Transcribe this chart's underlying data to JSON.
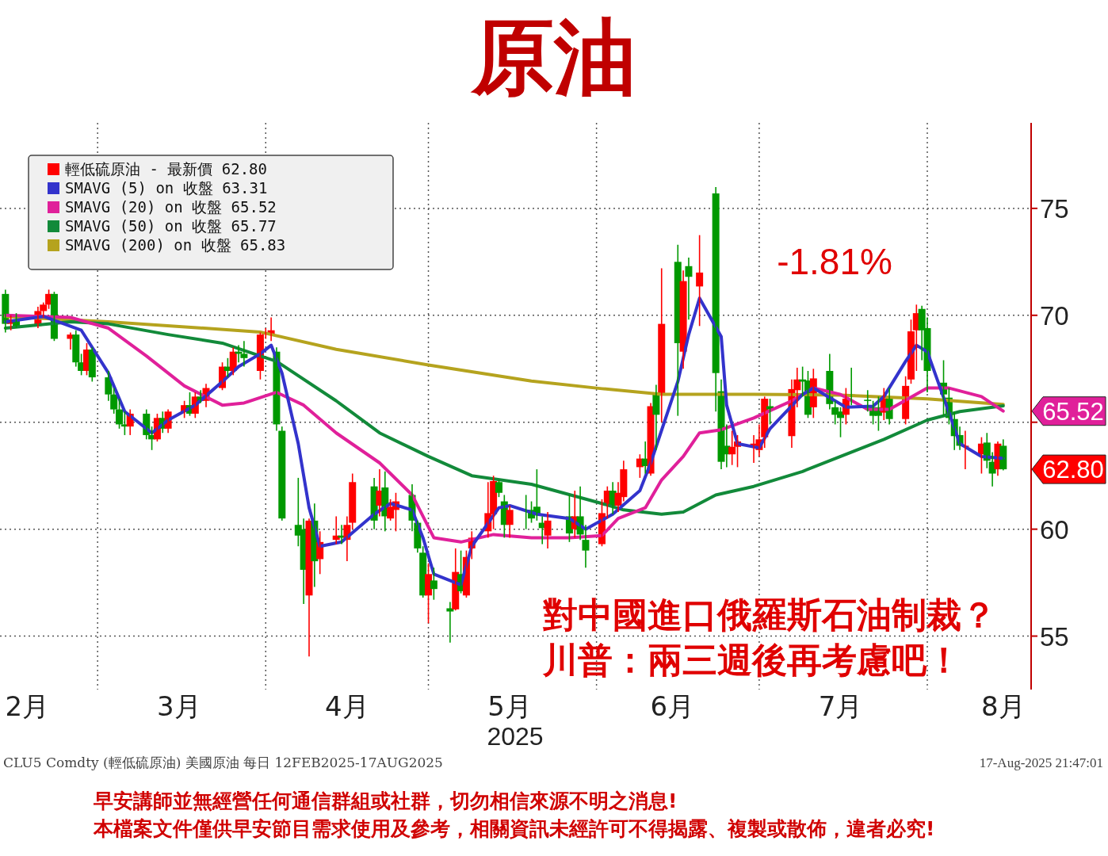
{
  "chart_data": {
    "type": "candlestick",
    "title": "原油",
    "xlabel": "2025",
    "xlim": [
      "2025-02-11",
      "2025-08-20"
    ],
    "ylim": [
      52.5,
      79
    ],
    "xticks": [
      {
        "value": "2025-02-16",
        "label": "2月"
      },
      {
        "value": "2025-03-01",
        "label": null
      },
      {
        "value": "2025-03-16",
        "label": "3月"
      },
      {
        "value": "2025-04-01",
        "label": null
      },
      {
        "value": "2025-04-16",
        "label": "4月"
      },
      {
        "value": "2025-05-01",
        "label": null
      },
      {
        "value": "2025-05-16",
        "label": "5月"
      },
      {
        "value": "2025-06-01",
        "label": null
      },
      {
        "value": "2025-06-15",
        "label": "6月"
      },
      {
        "value": "2025-07-01",
        "label": null
      },
      {
        "value": "2025-07-16",
        "label": "7月"
      },
      {
        "value": "2025-08-01",
        "label": null
      },
      {
        "value": "2025-08-15",
        "label": "8月"
      }
    ],
    "yticks": [
      55,
      60,
      {
        "value": 65,
        "label": null
      },
      70,
      75
    ],
    "grid": true,
    "legend": "top left",
    "x": [
      "2025-02-12",
      "2025-02-13",
      "2025-02-14",
      "2025-02-18",
      "2025-02-19",
      "2025-02-20",
      "2025-02-21",
      "2025-02-24",
      "2025-02-25",
      "2025-02-26",
      "2025-02-27",
      "2025-02-28",
      "2025-03-03",
      "2025-03-04",
      "2025-03-05",
      "2025-03-06",
      "2025-03-07",
      "2025-03-10",
      "2025-03-11",
      "2025-03-12",
      "2025-03-13",
      "2025-03-14",
      "2025-03-17",
      "2025-03-18",
      "2025-03-19",
      "2025-03-20",
      "2025-03-21",
      "2025-03-24",
      "2025-03-25",
      "2025-03-26",
      "2025-03-27",
      "2025-03-28",
      "2025-03-31",
      "2025-04-01",
      "2025-04-02",
      "2025-04-03",
      "2025-04-04",
      "2025-04-07",
      "2025-04-08",
      "2025-04-09",
      "2025-04-10",
      "2025-04-11",
      "2025-04-14",
      "2025-04-15",
      "2025-04-16",
      "2025-04-17",
      "2025-04-21",
      "2025-04-22",
      "2025-04-23",
      "2025-04-24",
      "2025-04-25",
      "2025-04-28",
      "2025-04-29",
      "2025-04-30",
      "2025-05-01",
      "2025-05-02",
      "2025-05-05",
      "2025-05-06",
      "2025-05-07",
      "2025-05-08",
      "2025-05-09",
      "2025-05-12",
      "2025-05-13",
      "2025-05-14",
      "2025-05-15",
      "2025-05-16",
      "2025-05-19",
      "2025-05-20",
      "2025-05-21",
      "2025-05-22",
      "2025-05-23",
      "2025-05-27",
      "2025-05-28",
      "2025-05-29",
      "2025-05-30",
      "2025-06-02",
      "2025-06-03",
      "2025-06-04",
      "2025-06-05",
      "2025-06-06",
      "2025-06-09",
      "2025-06-10",
      "2025-06-11",
      "2025-06-12",
      "2025-06-13",
      "2025-06-16",
      "2025-06-17",
      "2025-06-18",
      "2025-06-20",
      "2025-06-23",
      "2025-06-24",
      "2025-06-25",
      "2025-06-26",
      "2025-06-27",
      "2025-06-30",
      "2025-07-01",
      "2025-07-02",
      "2025-07-03",
      "2025-07-07",
      "2025-07-08",
      "2025-07-09",
      "2025-07-10",
      "2025-07-11",
      "2025-07-14",
      "2025-07-15",
      "2025-07-16",
      "2025-07-17",
      "2025-07-18",
      "2025-07-21",
      "2025-07-22",
      "2025-07-23",
      "2025-07-24",
      "2025-07-25",
      "2025-07-28",
      "2025-07-29",
      "2025-07-30",
      "2025-07-31",
      "2025-08-01",
      "2025-08-04",
      "2025-08-05",
      "2025-08-06",
      "2025-08-07",
      "2025-08-08",
      "2025-08-11",
      "2025-08-12",
      "2025-08-13",
      "2025-08-14",
      "2025-08-15"
    ],
    "series": [
      {
        "name": "輕低硫原油 - 最新價 62.80",
        "color": "#ff0000",
        "ohlc": [
          [
            71.0,
            71.2,
            69.2,
            69.6
          ],
          [
            69.6,
            70.0,
            69.3,
            69.8
          ],
          [
            69.8,
            70.1,
            69.4,
            69.5
          ],
          [
            69.5,
            70.4,
            69.4,
            70.2
          ],
          [
            70.2,
            70.6,
            69.9,
            70.5
          ],
          [
            70.5,
            71.2,
            70.3,
            71.0
          ],
          [
            71.0,
            71.1,
            68.8,
            68.9
          ],
          [
            68.9,
            69.2,
            68.4,
            69.1
          ],
          [
            69.1,
            69.3,
            67.6,
            67.8
          ],
          [
            67.8,
            68.2,
            67.2,
            67.4
          ],
          [
            67.4,
            68.7,
            67.2,
            68.4
          ],
          [
            68.4,
            68.5,
            66.9,
            67.1
          ],
          [
            67.1,
            67.4,
            66.0,
            66.3
          ],
          [
            66.3,
            66.6,
            65.4,
            65.6
          ],
          [
            65.6,
            66.1,
            64.7,
            64.9
          ],
          [
            64.9,
            65.5,
            64.4,
            64.8
          ],
          [
            64.8,
            65.6,
            64.4,
            65.4
          ],
          [
            65.4,
            65.6,
            64.2,
            64.4
          ],
          [
            64.4,
            64.8,
            63.7,
            64.2
          ],
          [
            64.2,
            65.4,
            64.1,
            65.2
          ],
          [
            65.2,
            65.5,
            64.5,
            64.7
          ],
          [
            64.7,
            65.6,
            64.5,
            65.5
          ],
          [
            65.5,
            66.0,
            65.2,
            65.8
          ],
          [
            65.8,
            66.4,
            65.3,
            65.4
          ],
          [
            65.4,
            66.4,
            65.2,
            66.2
          ],
          [
            66.2,
            66.5,
            65.9,
            66.0
          ],
          [
            66.0,
            66.8,
            65.7,
            66.6
          ],
          [
            66.6,
            67.8,
            66.5,
            67.6
          ],
          [
            67.6,
            68.0,
            67.1,
            67.4
          ],
          [
            67.4,
            68.5,
            67.2,
            68.3
          ],
          [
            68.3,
            68.6,
            67.8,
            68.2
          ],
          [
            68.2,
            68.8,
            67.6,
            68.0
          ],
          [
            67.4,
            69.2,
            67.0,
            69.1
          ],
          [
            69.1,
            69.4,
            68.9,
            69.2
          ],
          [
            69.1,
            69.9,
            68.8,
            69.3
          ],
          [
            68.3,
            68.5,
            64.6,
            64.9
          ],
          [
            64.6,
            64.8,
            60.4,
            60.5
          ],
          [
            60.2,
            62.4,
            59.2,
            59.7
          ],
          [
            60.0,
            60.5,
            56.5,
            58.1
          ],
          [
            56.9,
            60.5,
            54.05,
            60.4
          ],
          [
            60.4,
            61.2,
            57.3,
            58.5
          ],
          [
            58.6,
            59.9,
            57.9,
            59.4
          ],
          [
            59.5,
            60.6,
            59.3,
            59.7
          ],
          [
            59.7,
            60.2,
            59.3,
            59.6
          ],
          [
            59.5,
            60.6,
            58.5,
            60.2
          ],
          [
            60.3,
            62.6,
            60.0,
            62.2
          ],
          [
            62.0,
            62.4,
            60.0,
            60.4
          ],
          [
            61.1,
            62.8,
            60.6,
            61.8
          ],
          [
            61.95,
            62.7,
            59.9,
            60.6
          ],
          [
            60.5,
            61.4,
            60.4,
            61.05
          ],
          [
            60.9,
            61.7,
            59.9,
            61.3
          ],
          [
            61.6,
            62.1,
            59.9,
            60.4
          ],
          [
            60.3,
            60.4,
            58.9,
            59.1
          ],
          [
            58.9,
            59.2,
            56.8,
            56.9
          ],
          [
            56.9,
            58.4,
            55.6,
            57.9
          ],
          [
            57.6,
            58.2,
            56.7,
            57.2
          ],
          [
            56.3,
            56.6,
            54.7,
            56.15
          ],
          [
            56.25,
            59.1,
            56.2,
            58.0
          ],
          [
            57.9,
            59.0,
            57.0,
            57.1
          ],
          [
            56.9,
            59.0,
            56.8,
            58.7
          ],
          [
            59.1,
            59.9,
            58.6,
            59.6
          ],
          [
            59.9,
            62.2,
            59.6,
            60.75
          ],
          [
            60.7,
            62.5,
            60.0,
            62.25
          ],
          [
            62.2,
            62.3,
            61.5,
            61.7
          ],
          [
            61.3,
            61.6,
            59.6,
            60.2
          ],
          [
            60.2,
            61.1,
            59.6,
            60.9
          ],
          [
            60.9,
            61.6,
            60.0,
            60.85
          ],
          [
            60.9,
            61.3,
            60.3,
            60.5
          ],
          [
            61.05,
            62.8,
            60.4,
            60.7
          ],
          [
            60.3,
            60.6,
            59.3,
            60.05
          ],
          [
            59.7,
            60.8,
            59.1,
            60.4
          ],
          [
            60.6,
            61.6,
            59.4,
            59.8
          ],
          [
            60.0,
            61.8,
            59.6,
            60.6
          ],
          [
            60.6,
            62.0,
            59.5,
            59.75
          ],
          [
            59.5,
            60.2,
            58.2,
            59.0
          ],
          [
            59.3,
            61.4,
            59.2,
            60.75
          ],
          [
            61.15,
            62.0,
            60.5,
            61.8
          ],
          [
            61.8,
            62.2,
            60.7,
            61.1
          ],
          [
            61.1,
            62.2,
            60.8,
            61.7
          ],
          [
            61.5,
            63.2,
            61.3,
            62.8
          ],
          [
            62.9,
            63.5,
            62.4,
            63.3
          ],
          [
            63.3,
            64.1,
            62.6,
            62.95
          ],
          [
            62.6,
            65.9,
            62.5,
            65.75
          ],
          [
            66.4,
            66.75,
            63.7,
            65.35
          ],
          [
            66.3,
            72.2,
            65.0,
            69.6
          ],
          [
            72.5,
            73.3,
            65.3,
            68.7
          ],
          [
            68.3,
            72.1,
            67.5,
            71.6
          ],
          [
            72.3,
            72.7,
            69.8,
            71.8
          ],
          [
            71.35,
            73.75,
            69.5,
            72.0
          ],
          [
            75.7,
            76.0,
            65.5,
            67.3
          ],
          [
            66.45,
            67.0,
            62.8,
            63.15
          ],
          [
            63.9,
            64.9,
            62.9,
            63.5
          ],
          [
            63.5,
            64.6,
            63.0,
            63.85
          ],
          [
            63.85,
            64.4,
            62.9,
            64.1
          ],
          [
            63.9,
            64.4,
            63.1,
            64.0
          ],
          [
            63.7,
            64.9,
            63.4,
            64.2
          ],
          [
            64.3,
            66.2,
            63.8,
            66.1
          ],
          [
            65.75,
            66.1,
            64.9,
            65.6
          ],
          [
            64.35,
            67.0,
            63.8,
            66.55
          ],
          [
            66.5,
            67.55,
            65.7,
            67.0
          ],
          [
            67.0,
            67.6,
            66.2,
            66.9
          ],
          [
            66.95,
            67.4,
            65.2,
            65.35
          ],
          [
            65.7,
            67.5,
            65.2,
            67.05
          ],
          [
            67.4,
            68.2,
            65.6,
            65.85
          ],
          [
            65.7,
            66.0,
            64.9,
            65.35
          ],
          [
            65.5,
            65.7,
            64.3,
            65.2
          ],
          [
            65.35,
            66.6,
            64.9,
            66.1
          ],
          [
            66.3,
            67.55,
            65.8,
            66.2
          ],
          [
            66.05,
            66.5,
            65.5,
            66.0
          ],
          [
            65.7,
            66.0,
            64.9,
            65.3
          ],
          [
            65.7,
            66.2,
            64.6,
            65.3
          ],
          [
            65.45,
            66.6,
            65.1,
            66.1
          ],
          [
            66.1,
            66.6,
            64.9,
            65.15
          ],
          [
            65.15,
            67.15,
            64.9,
            66.7
          ],
          [
            67.0,
            69.8,
            66.8,
            69.25
          ],
          [
            69.3,
            70.5,
            67.4,
            70.1
          ],
          [
            70.3,
            70.45,
            67.9,
            69.3
          ],
          [
            69.4,
            69.9,
            66.4,
            67.4
          ],
          [
            66.85,
            67.9,
            65.3,
            66.3
          ],
          [
            66.15,
            66.6,
            64.9,
            65.2
          ],
          [
            65.15,
            65.5,
            63.7,
            64.35
          ],
          [
            64.4,
            64.8,
            63.7,
            63.9
          ],
          [
            63.85,
            64.6,
            62.8,
            63.9
          ],
          [
            63.5,
            64.3,
            62.6,
            64.0
          ],
          [
            64.05,
            64.5,
            62.85,
            63.2
          ],
          [
            63.15,
            63.6,
            62.0,
            62.6
          ],
          [
            62.8,
            64.1,
            62.5,
            64.0
          ],
          [
            63.9,
            64.2,
            62.75,
            62.8
          ]
        ],
        "colors": [
          "#009900",
          "#ff0000",
          "#009900",
          "#ff0000",
          "#ff0000",
          "#ff0000",
          "#009900",
          "#ff0000",
          "#009900",
          "#009900",
          "#ff0000",
          "#009900",
          "#009900",
          "#009900",
          "#009900",
          "#009900",
          "#ff0000",
          "#009900",
          "#009900",
          "#ff0000",
          "#009900",
          "#ff0000",
          "#ff0000",
          "#009900",
          "#ff0000",
          "#009900",
          "#ff0000",
          "#ff0000",
          "#009900",
          "#ff0000",
          "#009900",
          "#009900",
          "#ff0000",
          "#ff0000",
          "#ff0000",
          "#009900",
          "#009900",
          "#009900",
          "#009900",
          "#ff0000",
          "#009900",
          "#ff0000",
          "#ff0000",
          "#009900",
          "#ff0000",
          "#ff0000",
          "#009900",
          "#ff0000",
          "#009900",
          "#ff0000",
          "#ff0000",
          "#009900",
          "#009900",
          "#009900",
          "#ff0000",
          "#009900",
          "#009900",
          "#ff0000",
          "#009900",
          "#ff0000",
          "#ff0000",
          "#ff0000",
          "#ff0000",
          "#009900",
          "#009900",
          "#ff0000",
          "#009900",
          "#009900",
          "#009900",
          "#009900",
          "#ff0000",
          "#009900",
          "#ff0000",
          "#009900",
          "#009900",
          "#ff0000",
          "#ff0000",
          "#009900",
          "#ff0000",
          "#ff0000",
          "#ff0000",
          "#009900",
          "#ff0000",
          "#009900",
          "#ff0000",
          "#009900",
          "#ff0000",
          "#009900",
          "#ff0000",
          "#009900",
          "#009900",
          "#009900",
          "#ff0000",
          "#ff0000",
          "#ff0000",
          "#ff0000",
          "#ff0000",
          "#009900",
          "#ff0000",
          "#ff0000",
          "#009900",
          "#009900",
          "#ff0000",
          "#009900",
          "#009900",
          "#009900",
          "#ff0000",
          "#009900",
          "#009900",
          "#009900",
          "#009900",
          "#ff0000",
          "#009900",
          "#ff0000",
          "#ff0000",
          "#ff0000",
          "#009900",
          "#009900",
          "#009900",
          "#009900",
          "#009900",
          "#009900",
          "#ff0000",
          "#ff0000",
          "#009900",
          "#009900",
          "#ff0000",
          "#009900"
        ]
      },
      {
        "name": "SMAVG (5) on 收盤 63.31",
        "type": "line",
        "color": "#3333cc",
        "x": [
          "2025-02-12",
          "2025-02-19",
          "2025-02-26",
          "2025-03-03",
          "2025-03-06",
          "2025-03-11",
          "2025-03-14",
          "2025-03-19",
          "2025-03-24",
          "2025-03-27",
          "2025-03-31",
          "2025-04-02",
          "2025-04-04",
          "2025-04-07",
          "2025-04-09",
          "2025-04-11",
          "2025-04-15",
          "2025-04-21",
          "2025-04-24",
          "2025-04-28",
          "2025-04-30",
          "2025-05-02",
          "2025-05-07",
          "2025-05-09",
          "2025-05-14",
          "2025-05-16",
          "2025-05-21",
          "2025-05-27",
          "2025-05-30",
          "2025-06-04",
          "2025-06-09",
          "2025-06-11",
          "2025-06-16",
          "2025-06-18",
          "2025-06-20",
          "2025-06-24",
          "2025-06-25",
          "2025-06-27",
          "2025-07-01",
          "2025-07-03",
          "2025-07-09",
          "2025-07-11",
          "2025-07-15",
          "2025-07-17",
          "2025-07-22",
          "2025-07-24",
          "2025-07-28",
          "2025-07-30",
          "2025-08-01",
          "2025-08-05",
          "2025-08-07",
          "2025-08-11",
          "2025-08-15"
        ],
        "values": [
          69.7,
          69.95,
          69.3,
          67.3,
          65.5,
          64.5,
          65.1,
          65.8,
          66.9,
          67.6,
          68.2,
          68.6,
          67.3,
          64.0,
          61.0,
          59.2,
          59.4,
          60.7,
          61.2,
          60.9,
          59.6,
          57.9,
          57.4,
          59.2,
          61.0,
          61.1,
          60.7,
          60.5,
          60.0,
          60.7,
          61.8,
          63.1,
          66.9,
          69.1,
          70.8,
          69.0,
          65.8,
          64.0,
          63.8,
          64.7,
          66.3,
          66.6,
          66.0,
          65.7,
          65.75,
          66.2,
          67.85,
          68.6,
          68.3,
          65.45,
          64.0,
          63.4,
          63.31
        ]
      },
      {
        "name": "SMAVG (20) on 收盤 65.52",
        "type": "line",
        "color": "#e0209a",
        "x": [
          "2025-02-12",
          "2025-02-24",
          "2025-03-03",
          "2025-03-10",
          "2025-03-17",
          "2025-03-24",
          "2025-03-28",
          "2025-04-03",
          "2025-04-08",
          "2025-04-14",
          "2025-04-22",
          "2025-04-28",
          "2025-05-02",
          "2025-05-07",
          "2025-05-13",
          "2025-05-20",
          "2025-05-27",
          "2025-06-02",
          "2025-06-05",
          "2025-06-10",
          "2025-06-13",
          "2025-06-17",
          "2025-06-20",
          "2025-06-24",
          "2025-06-30",
          "2025-07-07",
          "2025-07-11",
          "2025-07-16",
          "2025-07-21",
          "2025-07-25",
          "2025-08-01",
          "2025-08-05",
          "2025-08-11",
          "2025-08-15"
        ],
        "values": [
          70.0,
          69.9,
          69.4,
          68.1,
          66.7,
          65.8,
          65.9,
          66.4,
          65.8,
          64.5,
          63.1,
          61.6,
          59.6,
          59.4,
          59.75,
          59.6,
          59.6,
          59.7,
          60.5,
          61.0,
          62.3,
          63.4,
          64.5,
          64.65,
          65.2,
          66.0,
          66.6,
          66.3,
          65.6,
          65.6,
          66.6,
          66.6,
          66.2,
          65.52
        ]
      },
      {
        "name": "SMAVG (50) on 收盤 65.77",
        "type": "line",
        "color": "#128a3a",
        "x": [
          "2025-02-12",
          "2025-02-24",
          "2025-03-03",
          "2025-03-14",
          "2025-03-24",
          "2025-03-31",
          "2025-04-03",
          "2025-04-14",
          "2025-04-22",
          "2025-05-01",
          "2025-05-09",
          "2025-05-20",
          "2025-06-02",
          "2025-06-06",
          "2025-06-13",
          "2025-06-17",
          "2025-06-23",
          "2025-06-30",
          "2025-07-09",
          "2025-07-16",
          "2025-07-24",
          "2025-08-01",
          "2025-08-07",
          "2025-08-15"
        ],
        "values": [
          69.4,
          69.7,
          69.6,
          69.1,
          68.7,
          68.1,
          67.85,
          66.0,
          64.5,
          63.4,
          62.5,
          62.1,
          61.2,
          60.9,
          60.7,
          60.8,
          61.6,
          62.0,
          62.7,
          63.4,
          64.2,
          65.1,
          65.5,
          65.77
        ]
      },
      {
        "name": "SMAVG (200) on 收盤 65.83",
        "type": "line",
        "color": "#b5a31e",
        "x": [
          "2025-02-12",
          "2025-03-03",
          "2025-03-31",
          "2025-04-14",
          "2025-05-01",
          "2025-05-20",
          "2025-06-02",
          "2025-06-13",
          "2025-06-30",
          "2025-07-16",
          "2025-08-01",
          "2025-08-15"
        ],
        "values": [
          69.95,
          69.7,
          69.22,
          68.41,
          67.68,
          66.93,
          66.57,
          66.31,
          66.31,
          66.27,
          66.09,
          65.83
        ]
      }
    ],
    "annotations": [
      "-1.81%",
      "對中國進口俄羅斯石油制裁？",
      "川普：兩三週後再考慮吧！",
      "CLU5 Comdty (輕低硫原油) 美國原油   每日   12FEB2025-17AUG2025",
      "17-Aug-2025 21:47:01",
      "早安講師並無經營任何通信群組或社群，切勿相信來源不明之消息!",
      "本檔案文件僅供早安節目需求使用及參考，相關資訊未經許可不得揭露、複製或散佈，違者必究!",
      "65.52",
      "62.80"
    ]
  }
}
